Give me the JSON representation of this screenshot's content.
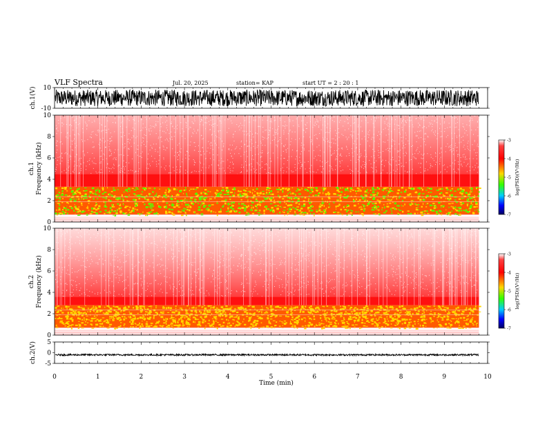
{
  "header": {
    "title": "VLF Spectra",
    "date": "Jul. 20, 2025",
    "station": "station= KAP",
    "start": "start  UT =   2 : 20 : 1"
  },
  "colors": {
    "axis": "#000000",
    "spec_background": "#ffffff",
    "spec_red": "#ff0000",
    "spec_yellow": "#ffd700",
    "spec_green": "#33ff00"
  },
  "chart_data": [
    {
      "type": "line",
      "name": "ch.1 waveform",
      "ylabel": "ch.1(V)",
      "ylim": [
        -10,
        10
      ],
      "yticks": [
        "10",
        "-10"
      ],
      "xlim": [
        0,
        10
      ],
      "description_values": {
        "amplitude_typical_V": 8,
        "center_V": 0
      }
    },
    {
      "type": "heatmap",
      "name": "ch.1 spectrogram",
      "ylabel": "ch.1\nFrequency (kHz)",
      "ylabel_lines": [
        "ch.1",
        "Frequency  (kHz)"
      ],
      "ylim": [
        0,
        10
      ],
      "yticks": [
        "0",
        "2",
        "4",
        "6",
        "8",
        "10"
      ],
      "xlim": [
        0,
        10
      ],
      "band_edges_kHz": {
        "yellow_green_top": 3.3,
        "strong_red_top": 4.5,
        "low_cutoff": 0.7
      },
      "colorbar": {
        "label": "log(PSD)(V²/Hz)",
        "range": [
          -7,
          -3
        ],
        "ticks": [
          "-3",
          "-4",
          "-5",
          "-6",
          "-7"
        ]
      }
    },
    {
      "type": "heatmap",
      "name": "ch.2 spectrogram",
      "ylabel_lines": [
        "ch.2",
        "Frequency  (kHz)"
      ],
      "ylim": [
        0,
        10
      ],
      "yticks": [
        "0",
        "2",
        "4",
        "6",
        "8",
        "10"
      ],
      "xlim": [
        0,
        10
      ],
      "band_edges_kHz": {
        "yellow_green_top": 2.8,
        "strong_red_top": 3.6,
        "low_cutoff": 0.7
      },
      "colorbar": {
        "label": "log(PSD)(V²/Hz)",
        "range": [
          -7,
          -3
        ],
        "ticks": [
          "-3",
          "-4",
          "-5",
          "-6",
          "-7"
        ]
      }
    },
    {
      "type": "line",
      "name": "ch.2 waveform",
      "ylabel": "ch.2(V)",
      "ylim": [
        -5,
        5
      ],
      "yticks": [
        "5",
        "0",
        "-5"
      ],
      "xlim": [
        0,
        10
      ],
      "description_values": {
        "center_V": -1,
        "amplitude_typical_V": 0.4
      }
    }
  ],
  "xaxis": {
    "label": "Time  (min)",
    "ticks": [
      "0",
      "1",
      "2",
      "3",
      "4",
      "5",
      "6",
      "7",
      "8",
      "9",
      "10"
    ]
  }
}
